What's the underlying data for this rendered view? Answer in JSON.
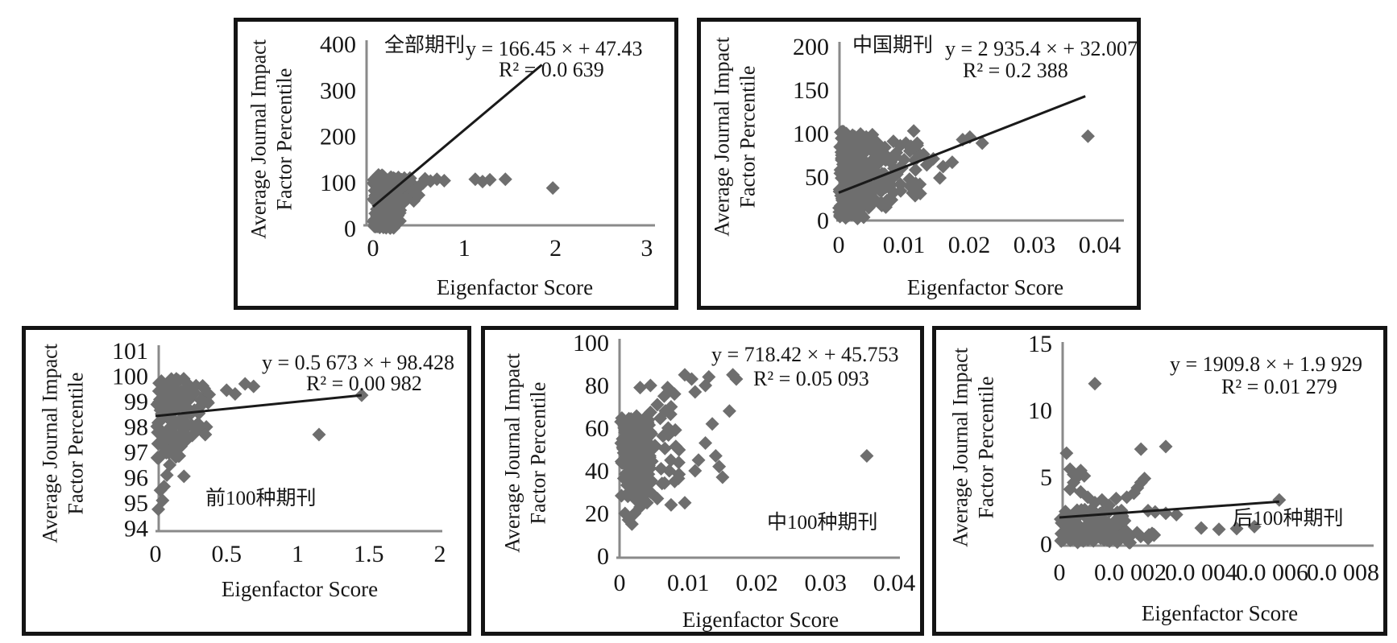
{
  "style": {
    "background": "#ffffff",
    "marker_color": "#6e6e6e",
    "trend_color": "#1a1a1a",
    "axis_color": "#8a8a8a",
    "border_color": "#141414",
    "text_color": "#161616"
  },
  "chart_data": [
    {
      "id": "all-journals",
      "type": "scatter",
      "marker": "diamond",
      "title": "全部期刊",
      "title_position": "top",
      "equation": "y = 166.45 × + 47.43",
      "r_squared": "R² = 0.0 639",
      "xlabel": "Eigenfactor Score",
      "ylabel_line1": "Average Journal Impact",
      "ylabel_line2": "Factor Percentile",
      "xlim": [
        0,
        3
      ],
      "ylim": [
        0,
        400
      ],
      "xticks": [
        0,
        1,
        2,
        3
      ],
      "yticks": [
        0,
        100,
        200,
        300,
        400
      ],
      "xtick_labels": [
        "0",
        "1",
        "2",
        "3"
      ],
      "ytick_labels": [
        "0",
        "100",
        "200",
        "300",
        "400"
      ],
      "grid": false,
      "legend": null,
      "trendline": {
        "x": [
          0,
          1.85
        ],
        "y": [
          47.4,
          355.4
        ]
      },
      "clusters": [
        {
          "seed": 11,
          "n": 230,
          "x": [
            0.004,
            0.3
          ],
          "y": [
            1,
            112
          ]
        },
        {
          "seed": 12,
          "n": 46,
          "x": [
            0.28,
            0.5
          ],
          "y": [
            60,
            112
          ]
        },
        {
          "seed": 13,
          "n": 18,
          "x": [
            0.02,
            0.16
          ],
          "y": [
            100,
            118
          ]
        }
      ],
      "points": [
        [
          0.33,
          62
        ],
        [
          0.36,
          68
        ],
        [
          0.4,
          75
        ],
        [
          0.44,
          82
        ],
        [
          0.48,
          88
        ],
        [
          0.52,
          95
        ],
        [
          0.55,
          99
        ],
        [
          0.57,
          108
        ],
        [
          0.63,
          103
        ],
        [
          0.7,
          107
        ],
        [
          0.78,
          104
        ],
        [
          1.12,
          107
        ],
        [
          1.2,
          102
        ],
        [
          1.28,
          106
        ],
        [
          1.45,
          107
        ],
        [
          1.97,
          88
        ]
      ]
    },
    {
      "id": "chinese-journals",
      "type": "scatter",
      "marker": "diamond",
      "title": "中国期刊",
      "title_position": "top",
      "equation": "y = 2 935.4 × + 32.007",
      "r_squared": "R² = 0.2 388",
      "xlabel": "Eigenfactor Score",
      "ylabel_line1": "Average Journal Impact",
      "ylabel_line2": "Factor Percentile",
      "xlim": [
        0,
        0.04
      ],
      "ylim": [
        0,
        200
      ],
      "xticks": [
        0,
        0.01,
        0.02,
        0.03,
        0.04
      ],
      "yticks": [
        0,
        50,
        100,
        150,
        200
      ],
      "xtick_labels": [
        "0",
        "0.01",
        "0.02",
        "0.03",
        "0.04"
      ],
      "ytick_labels": [
        "0",
        "50",
        "100",
        "150",
        "200"
      ],
      "grid": false,
      "legend": null,
      "trendline": {
        "x": [
          0,
          0.0378
        ],
        "y": [
          32,
          143
        ]
      },
      "clusters": [
        {
          "seed": 21,
          "n": 210,
          "x": [
            5e-05,
            0.0042
          ],
          "y": [
            2,
            103
          ]
        },
        {
          "seed": 22,
          "n": 80,
          "x": [
            0.0035,
            0.0085
          ],
          "y": [
            14,
            100
          ]
        },
        {
          "seed": 23,
          "n": 26,
          "x": [
            0.008,
            0.0125
          ],
          "y": [
            28,
            92
          ]
        }
      ],
      "points": [
        [
          0.0115,
          103
        ],
        [
          0.012,
          72
        ],
        [
          0.013,
          76
        ],
        [
          0.0135,
          64
        ],
        [
          0.0145,
          71
        ],
        [
          0.0155,
          49
        ],
        [
          0.016,
          62
        ],
        [
          0.0174,
          67
        ],
        [
          0.019,
          93
        ],
        [
          0.0201,
          96
        ],
        [
          0.022,
          89
        ],
        [
          0.0095,
          34
        ],
        [
          0.011,
          39
        ],
        [
          0.0125,
          31
        ],
        [
          0.0382,
          97
        ]
      ]
    },
    {
      "id": "top-100-journals",
      "type": "scatter",
      "marker": "diamond",
      "title": "前100种期刊",
      "title_position": "inside",
      "equation": "y = 0.5 673 × + 98.428",
      "r_squared": "R² = 0.00 982",
      "xlabel": "Eigenfactor Score",
      "ylabel_line1": "Average Journal Impact",
      "ylabel_line2": "Factor Percentile",
      "xlim": [
        0,
        2
      ],
      "ylim": [
        94,
        101
      ],
      "xticks": [
        0,
        0.5,
        1,
        1.5,
        2
      ],
      "yticks": [
        94,
        95,
        96,
        97,
        98,
        99,
        100,
        101
      ],
      "xtick_labels": [
        "0",
        "0.5",
        "1",
        "1.5",
        "2"
      ],
      "ytick_labels": [
        "94",
        "95",
        "96",
        "97",
        "98",
        "99",
        "100",
        "101"
      ],
      "grid": false,
      "legend": null,
      "trendline": {
        "x": [
          0,
          1.45
        ],
        "y": [
          98.43,
          99.25
        ]
      },
      "clusters": [
        {
          "seed": 31,
          "n": 95,
          "x": [
            0.01,
            0.22
          ],
          "y": [
            96.7,
            99.95
          ]
        },
        {
          "seed": 32,
          "n": 26,
          "x": [
            0.21,
            0.38
          ],
          "y": [
            97.4,
            99.85
          ]
        }
      ],
      "points": [
        [
          0.02,
          94.75
        ],
        [
          0.05,
          95.1
        ],
        [
          0.035,
          95.5
        ],
        [
          0.06,
          95.65
        ],
        [
          0.08,
          96.1
        ],
        [
          0.2,
          96.05
        ],
        [
          0.1,
          96.5
        ],
        [
          0.3,
          97.9
        ],
        [
          0.35,
          97.7
        ],
        [
          0.33,
          99.0
        ],
        [
          0.37,
          98.95
        ],
        [
          0.5,
          99.45
        ],
        [
          0.56,
          99.3
        ],
        [
          0.63,
          99.7
        ],
        [
          0.69,
          99.6
        ],
        [
          1.15,
          97.7
        ],
        [
          1.45,
          99.25
        ]
      ]
    },
    {
      "id": "middle-100-journals",
      "type": "scatter",
      "marker": "diamond",
      "title": "中100种期刊",
      "title_position": "inside",
      "equation": "y = 718.42 × + 45.753",
      "r_squared": "R² = 0.05 093",
      "xlabel": "Eigenfactor Score",
      "ylabel_line1": "Average Journal Impact",
      "ylabel_line2": "Factor Percentile",
      "xlim": [
        0,
        0.04
      ],
      "ylim": [
        0,
        100
      ],
      "xticks": [
        0,
        0.01,
        0.02,
        0.03,
        0.04
      ],
      "yticks": [
        0,
        20,
        40,
        60,
        80,
        100
      ],
      "xtick_labels": [
        "0",
        "0.01",
        "0.02",
        "0.03",
        "0.04"
      ],
      "ytick_labels": [
        "0",
        "20",
        "40",
        "60",
        "80",
        "100"
      ],
      "grid": false,
      "legend": null,
      "trendline": null,
      "clusters": [
        {
          "seed": 41,
          "n": 135,
          "x": [
            0.0002,
            0.0045
          ],
          "y": [
            28,
            66
          ]
        },
        {
          "seed": 42,
          "n": 36,
          "x": [
            0.003,
            0.009
          ],
          "y": [
            33,
            72
          ]
        }
      ],
      "points": [
        [
          0.0008,
          20
        ],
        [
          0.0013,
          17
        ],
        [
          0.0018,
          15
        ],
        [
          0.0022,
          20
        ],
        [
          0.0025,
          26
        ],
        [
          0.003,
          23
        ],
        [
          0.0035,
          28
        ],
        [
          0.004,
          25
        ],
        [
          0.0045,
          30
        ],
        [
          0.0055,
          27
        ],
        [
          0.0075,
          24
        ],
        [
          0.0095,
          25
        ],
        [
          0.003,
          79
        ],
        [
          0.0045,
          80
        ],
        [
          0.0055,
          71
        ],
        [
          0.0065,
          75
        ],
        [
          0.007,
          79
        ],
        [
          0.0075,
          70
        ],
        [
          0.008,
          76
        ],
        [
          0.0095,
          85
        ],
        [
          0.0105,
          83
        ],
        [
          0.011,
          77
        ],
        [
          0.0125,
          80
        ],
        [
          0.013,
          84
        ],
        [
          0.0165,
          85
        ],
        [
          0.017,
          83
        ],
        [
          0.016,
          68
        ],
        [
          0.0135,
          62
        ],
        [
          0.0125,
          53
        ],
        [
          0.014,
          47
        ],
        [
          0.0145,
          42
        ],
        [
          0.015,
          37
        ],
        [
          0.011,
          40
        ],
        [
          0.0115,
          45
        ],
        [
          0.036,
          47
        ]
      ]
    },
    {
      "id": "bottom-100-journals",
      "type": "scatter",
      "marker": "diamond",
      "title": "后100种期刊",
      "title_position": "inside",
      "equation": "y = 1909.8 × + 1.9 929",
      "r_squared": "R² = 0.01 279",
      "xlabel": "Eigenfactor Score",
      "ylabel_line1": "Average Journal Impact",
      "ylabel_line2": "Factor Percentile",
      "xlim": [
        0,
        0.0008
      ],
      "ylim": [
        0,
        15
      ],
      "xticks": [
        0,
        0.0002,
        0.0004,
        0.0006,
        0.0008
      ],
      "yticks": [
        0,
        5,
        10,
        15
      ],
      "xtick_labels": [
        "0",
        "0.0 002",
        "0.0 004",
        "0.0 006",
        "0.0 008"
      ],
      "ytick_labels": [
        "0",
        "5",
        "10",
        "15"
      ],
      "grid": false,
      "legend": null,
      "trendline": {
        "x": [
          0,
          0.00062
        ],
        "y": [
          1.99,
          3.17
        ]
      },
      "clusters": [
        {
          "seed": 51,
          "n": 115,
          "x": [
            3e-06,
            0.00019
          ],
          "y": [
            0.1,
            2.6
          ]
        },
        {
          "seed": 52,
          "n": 14,
          "x": [
            0.00018,
            0.00027
          ],
          "y": [
            0.1,
            1.0
          ]
        }
      ],
      "points": [
        [
          2e-05,
          6.8
        ],
        [
          3e-05,
          5.6
        ],
        [
          4e-05,
          5.2
        ],
        [
          5e-05,
          5.0
        ],
        [
          6e-05,
          5.5
        ],
        [
          7e-05,
          5.1
        ],
        [
          4e-05,
          4.6
        ],
        [
          3e-05,
          4.1
        ],
        [
          6e-05,
          3.9
        ],
        [
          8e-05,
          3.5
        ],
        [
          0.0001,
          12
        ],
        [
          0.0001,
          3.1
        ],
        [
          0.00012,
          3.3
        ],
        [
          0.00014,
          2.9
        ],
        [
          0.00016,
          3.4
        ],
        [
          0.00019,
          3.5
        ],
        [
          0.00021,
          3.8
        ],
        [
          0.00022,
          4.2
        ],
        [
          0.00023,
          4.6
        ],
        [
          0.00024,
          4.9
        ],
        [
          0.00023,
          7.1
        ],
        [
          0.0003,
          7.3
        ],
        [
          0.00025,
          2.5
        ],
        [
          0.00027,
          2.4
        ],
        [
          0.0003,
          2.3
        ],
        [
          0.00033,
          2.2
        ],
        [
          0.0004,
          1.2
        ],
        [
          0.00045,
          1.1
        ],
        [
          0.0005,
          1.15
        ],
        [
          0.00055,
          1.3
        ],
        [
          0.00062,
          3.3
        ]
      ]
    }
  ]
}
